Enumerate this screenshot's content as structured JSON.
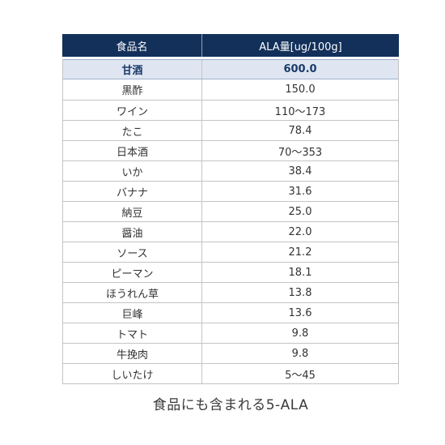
{
  "chart_data": {
    "type": "table",
    "columns": [
      "食品名",
      "ALA量[ug/100g]"
    ],
    "rows": [
      {
        "food": "甘酒",
        "ala": "600.0",
        "highlight": true
      },
      {
        "food": "黒酢",
        "ala": "150.0"
      },
      {
        "food": "ワイン",
        "ala": "110〜173"
      },
      {
        "food": "たこ",
        "ala": "78.4"
      },
      {
        "food": "日本酒",
        "ala": "70〜353"
      },
      {
        "food": "いか",
        "ala": "38.4"
      },
      {
        "food": "バナナ",
        "ala": "31.6"
      },
      {
        "food": "納豆",
        "ala": "25.0"
      },
      {
        "food": "醤油",
        "ala": "22.0"
      },
      {
        "food": "ソース",
        "ala": "21.2"
      },
      {
        "food": "ピーマン",
        "ala": "18.1"
      },
      {
        "food": "ほうれん草",
        "ala": "13.8"
      },
      {
        "food": "巨峰",
        "ala": "13.6"
      },
      {
        "food": "トマト",
        "ala": "9.8"
      },
      {
        "food": "牛挽肉",
        "ala": "9.8"
      },
      {
        "food": "しいたけ",
        "ala": "5〜45"
      }
    ],
    "caption": "食品にも含まれる5-ALA"
  },
  "colors": {
    "header_bg": "#12305a",
    "header_text": "#ffffff",
    "highlight_bg": "#dfe6f1",
    "highlight_text": "#1b3a6a",
    "grid": "#c4c4c4",
    "text": "#333333"
  }
}
